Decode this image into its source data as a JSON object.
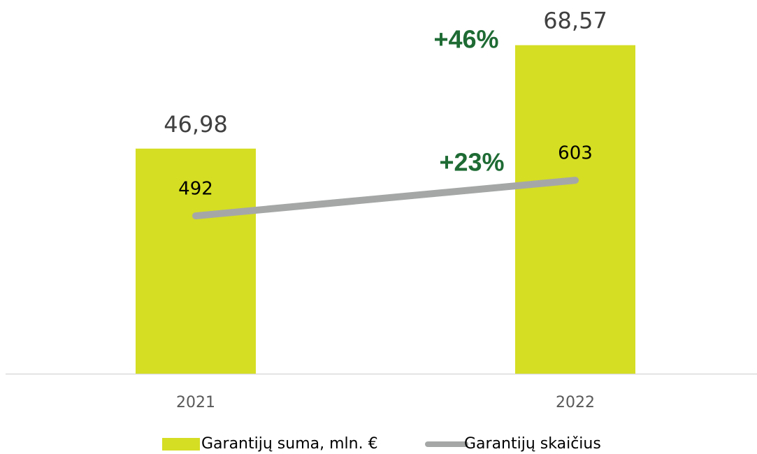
{
  "chart_data": {
    "type": "bar",
    "categories": [
      "2021",
      "2022"
    ],
    "series": [
      {
        "name": "Garantijų suma, mln. €",
        "type": "bar",
        "color": "#d5de23",
        "values": [
          46.98,
          68.57
        ],
        "value_labels": [
          "46,98",
          "68,57"
        ]
      },
      {
        "name": "Garantijų skaičius",
        "type": "line",
        "axis": "y2",
        "color": "#a5a7a7",
        "values": [
          492,
          603
        ]
      }
    ],
    "annotations": [
      "+46%",
      "+23%"
    ],
    "annotation_color": "#1e6b34",
    "ylim": [
      0,
      78
    ],
    "y2lim": [
      0,
      1165
    ],
    "legend": "bottom"
  }
}
